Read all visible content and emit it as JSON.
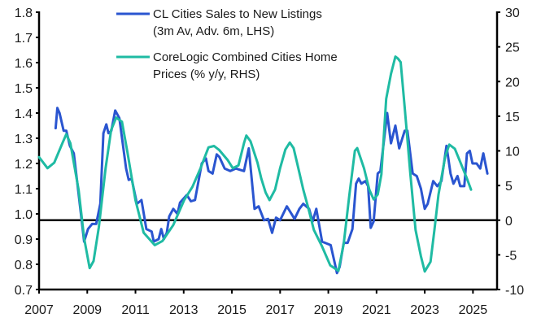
{
  "chart_data": {
    "type": "line",
    "title": "",
    "xlabel": "",
    "ylabel": "",
    "ylabel_right": "",
    "xlim": [
      2007,
      2026
    ],
    "ylim_left": [
      0.7,
      1.8
    ],
    "ylim_right": [
      -10,
      30
    ],
    "grid": false,
    "reference_line": {
      "axis": "right",
      "value": 0
    },
    "legend_placement": "top-center",
    "x_ticks": [
      "2007",
      "2009",
      "2011",
      "2013",
      "2015",
      "2017",
      "2019",
      "2021",
      "2023",
      "2025"
    ],
    "y_ticks_left": [
      "0.7",
      "0.8",
      "0.9",
      "1.0",
      "1.1",
      "1.2",
      "1.3",
      "1.4",
      "1.5",
      "1.6",
      "1.7",
      "1.8"
    ],
    "y_ticks_right": [
      "-10",
      "-5",
      "0",
      "5",
      "10",
      "15",
      "20",
      "25",
      "30"
    ],
    "series": [
      {
        "name": "CL Cities Sales to New Listings",
        "name_line2": "(3m Av, Adv. 6m, LHS)",
        "axis": "left",
        "color": "#2a55d0",
        "points": [
          [
            2007.69,
            1.34
          ],
          [
            2007.76,
            1.42
          ],
          [
            2007.85,
            1.4
          ],
          [
            2008.02,
            1.33
          ],
          [
            2008.13,
            1.33
          ],
          [
            2008.28,
            1.27
          ],
          [
            2008.44,
            1.24
          ],
          [
            2008.64,
            1.08
          ],
          [
            2008.87,
            0.89
          ],
          [
            2009.03,
            0.94
          ],
          [
            2009.2,
            0.96
          ],
          [
            2009.37,
            0.96
          ],
          [
            2009.54,
            1.04
          ],
          [
            2009.67,
            1.32
          ],
          [
            2009.79,
            1.355
          ],
          [
            2009.88,
            1.32
          ],
          [
            2010.0,
            1.33
          ],
          [
            2010.16,
            1.41
          ],
          [
            2010.33,
            1.38
          ],
          [
            2010.61,
            1.18
          ],
          [
            2010.72,
            1.135
          ],
          [
            2010.84,
            1.14
          ],
          [
            2011.06,
            1.04
          ],
          [
            2011.25,
            1.055
          ],
          [
            2011.45,
            0.94
          ],
          [
            2011.67,
            0.93
          ],
          [
            2011.76,
            0.89
          ],
          [
            2011.96,
            0.9
          ],
          [
            2012.07,
            0.94
          ],
          [
            2012.18,
            0.9
          ],
          [
            2012.3,
            0.925
          ],
          [
            2012.4,
            0.99
          ],
          [
            2012.57,
            1.02
          ],
          [
            2012.74,
            1.0
          ],
          [
            2012.85,
            1.045
          ],
          [
            2013.13,
            1.075
          ],
          [
            2013.3,
            1.05
          ],
          [
            2013.47,
            1.055
          ],
          [
            2013.75,
            1.2
          ],
          [
            2013.92,
            1.22
          ],
          [
            2014.03,
            1.17
          ],
          [
            2014.2,
            1.16
          ],
          [
            2014.37,
            1.236
          ],
          [
            2014.48,
            1.226
          ],
          [
            2014.7,
            1.18
          ],
          [
            2014.93,
            1.17
          ],
          [
            2015.16,
            1.18
          ],
          [
            2015.5,
            1.17
          ],
          [
            2015.7,
            1.26
          ],
          [
            2015.94,
            1.02
          ],
          [
            2016.11,
            1.03
          ],
          [
            2016.33,
            0.975
          ],
          [
            2016.5,
            0.98
          ],
          [
            2016.67,
            0.925
          ],
          [
            2016.83,
            0.985
          ],
          [
            2017.0,
            0.975
          ],
          [
            2017.28,
            1.03
          ],
          [
            2017.6,
            0.98
          ],
          [
            2017.8,
            1.02
          ],
          [
            2017.96,
            1.04
          ],
          [
            2018.2,
            1.02
          ],
          [
            2018.35,
            0.97
          ],
          [
            2018.5,
            1.02
          ],
          [
            2018.74,
            0.89
          ],
          [
            2019.1,
            0.876
          ],
          [
            2019.3,
            0.79
          ],
          [
            2019.36,
            0.765
          ],
          [
            2019.47,
            0.79
          ],
          [
            2019.64,
            0.885
          ],
          [
            2019.8,
            0.885
          ],
          [
            2020.0,
            0.94
          ],
          [
            2020.15,
            1.12
          ],
          [
            2020.26,
            1.14
          ],
          [
            2020.37,
            1.12
          ],
          [
            2020.54,
            1.13
          ],
          [
            2020.65,
            1.11
          ],
          [
            2020.76,
            0.945
          ],
          [
            2020.88,
            0.97
          ],
          [
            2021.05,
            1.16
          ],
          [
            2021.16,
            1.17
          ],
          [
            2021.44,
            1.4
          ],
          [
            2021.6,
            1.28
          ],
          [
            2021.78,
            1.35
          ],
          [
            2021.94,
            1.26
          ],
          [
            2022.17,
            1.33
          ],
          [
            2022.28,
            1.33
          ],
          [
            2022.5,
            1.16
          ],
          [
            2022.67,
            1.15
          ],
          [
            2022.84,
            1.1
          ],
          [
            2023.0,
            1.02
          ],
          [
            2023.12,
            1.04
          ],
          [
            2023.35,
            1.13
          ],
          [
            2023.52,
            1.11
          ],
          [
            2023.69,
            1.13
          ],
          [
            2023.9,
            1.27
          ],
          [
            2024.07,
            1.16
          ],
          [
            2024.19,
            1.12
          ],
          [
            2024.36,
            1.15
          ],
          [
            2024.47,
            1.11
          ],
          [
            2024.64,
            1.11
          ],
          [
            2024.75,
            1.24
          ],
          [
            2024.87,
            1.25
          ],
          [
            2024.98,
            1.2
          ],
          [
            2025.15,
            1.2
          ],
          [
            2025.3,
            1.18
          ],
          [
            2025.43,
            1.24
          ],
          [
            2025.6,
            1.16
          ]
        ]
      },
      {
        "name": "CoreLogic Combined Cities Home",
        "name_line2": "Prices (% y/y, RHS)",
        "axis": "right",
        "color": "#1fbba3",
        "points": [
          [
            2007.0,
            9.1
          ],
          [
            2007.35,
            7.5
          ],
          [
            2007.63,
            8.3
          ],
          [
            2007.97,
            11.1
          ],
          [
            2008.13,
            12.4
          ],
          [
            2008.3,
            11.1
          ],
          [
            2008.64,
            4.4
          ],
          [
            2008.87,
            -2.6
          ],
          [
            2009.1,
            -6.9
          ],
          [
            2009.26,
            -5.9
          ],
          [
            2009.48,
            -1
          ],
          [
            2009.76,
            7.5
          ],
          [
            2009.99,
            13
          ],
          [
            2010.2,
            14.8
          ],
          [
            2010.44,
            14.2
          ],
          [
            2010.66,
            9.9
          ],
          [
            2011.0,
            2.9
          ],
          [
            2011.34,
            -1.8
          ],
          [
            2011.8,
            -3.6
          ],
          [
            2012.12,
            -3
          ],
          [
            2012.57,
            -0.7
          ],
          [
            2013.02,
            2.9
          ],
          [
            2013.36,
            4.8
          ],
          [
            2013.7,
            7.5
          ],
          [
            2014.03,
            10.5
          ],
          [
            2014.26,
            10.7
          ],
          [
            2014.48,
            10.1
          ],
          [
            2014.82,
            8.7
          ],
          [
            2015.04,
            7.5
          ],
          [
            2015.27,
            7.9
          ],
          [
            2015.5,
            11.1
          ],
          [
            2015.6,
            12.2
          ],
          [
            2015.77,
            11.4
          ],
          [
            2016.06,
            8.3
          ],
          [
            2016.22,
            6
          ],
          [
            2016.4,
            4
          ],
          [
            2016.56,
            2.9
          ],
          [
            2016.79,
            4.4
          ],
          [
            2017.0,
            7.5
          ],
          [
            2017.22,
            10.2
          ],
          [
            2017.4,
            11.2
          ],
          [
            2017.56,
            10.4
          ],
          [
            2017.73,
            7.9
          ],
          [
            2017.96,
            4.4
          ],
          [
            2018.18,
            1.6
          ],
          [
            2018.4,
            -1.4
          ],
          [
            2018.74,
            -3.8
          ],
          [
            2019.08,
            -6.5
          ],
          [
            2019.42,
            -7.3
          ],
          [
            2019.64,
            -3.4
          ],
          [
            2019.87,
            3.6
          ],
          [
            2020.1,
            10
          ],
          [
            2020.2,
            10.4
          ],
          [
            2020.48,
            7.5
          ],
          [
            2020.7,
            4.4
          ],
          [
            2020.88,
            3
          ],
          [
            2021.05,
            3.7
          ],
          [
            2021.2,
            6.6
          ],
          [
            2021.4,
            17.5
          ],
          [
            2021.6,
            21.1
          ],
          [
            2021.78,
            23.6
          ],
          [
            2021.89,
            23.3
          ],
          [
            2022.0,
            22.8
          ],
          [
            2022.17,
            16.2
          ],
          [
            2022.4,
            6.8
          ],
          [
            2022.62,
            -1.4
          ],
          [
            2022.84,
            -5.2
          ],
          [
            2023.0,
            -7.4
          ],
          [
            2023.24,
            -6
          ],
          [
            2023.4,
            -1.4
          ],
          [
            2023.57,
            3.7
          ],
          [
            2023.85,
            9.2
          ],
          [
            2024.02,
            10.9
          ],
          [
            2024.25,
            10.3
          ],
          [
            2024.47,
            8.4
          ],
          [
            2024.75,
            6
          ],
          [
            2024.92,
            4.4
          ]
        ]
      }
    ]
  }
}
